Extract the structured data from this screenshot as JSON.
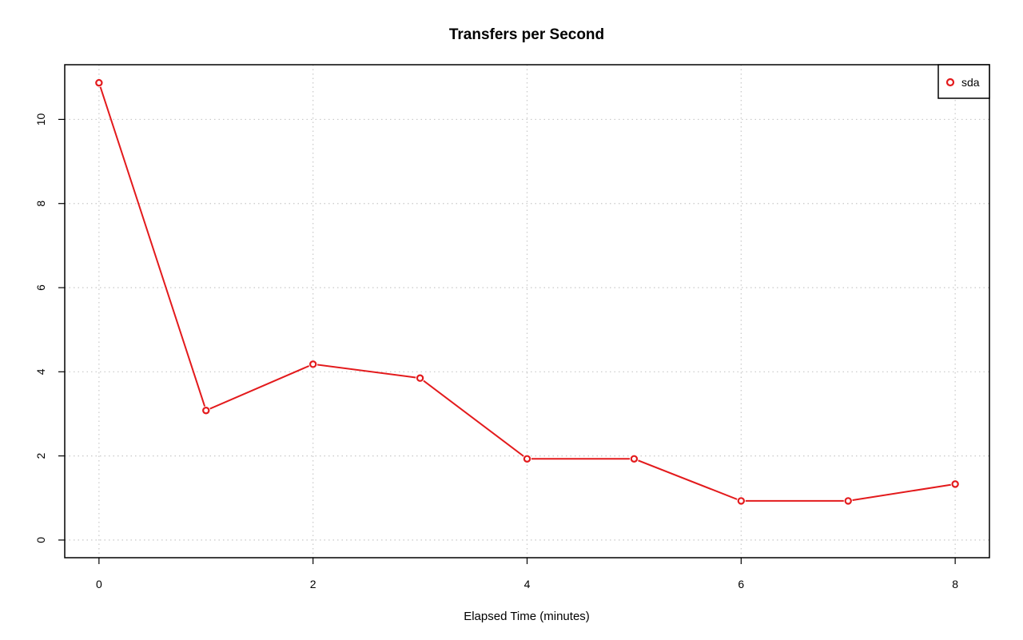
{
  "chart_data": {
    "type": "line",
    "title": "Transfers per Second",
    "xlabel": "Elapsed Time (minutes)",
    "ylabel": "",
    "xlim": [
      -0.32,
      8.32
    ],
    "ylim": [
      -0.42,
      11.3
    ],
    "x_ticks": [
      0,
      2,
      4,
      6,
      8
    ],
    "y_ticks": [
      0,
      2,
      4,
      6,
      8,
      10
    ],
    "grid": true,
    "legend_position": "top-right",
    "series": [
      {
        "name": "sda",
        "color": "#e31a1c",
        "marker": "open-circle",
        "x": [
          0,
          1,
          2,
          3,
          4,
          5,
          6,
          7,
          8
        ],
        "y": [
          10.87,
          3.08,
          4.18,
          3.85,
          1.93,
          1.93,
          0.93,
          0.93,
          1.33
        ]
      }
    ]
  }
}
